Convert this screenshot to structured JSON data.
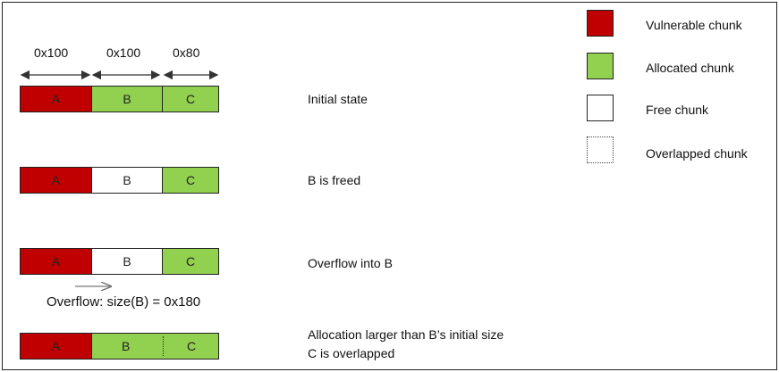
{
  "sizes": {
    "a": "0x100",
    "b": "0x100",
    "c": "0x80"
  },
  "rows": [
    {
      "chunks": [
        {
          "label": "A",
          "state": "vulnerable"
        },
        {
          "label": "B",
          "state": "allocated"
        },
        {
          "label": "C",
          "state": "allocated"
        }
      ],
      "caption": "Initial state"
    },
    {
      "chunks": [
        {
          "label": "A",
          "state": "vulnerable"
        },
        {
          "label": "B",
          "state": "free"
        },
        {
          "label": "C",
          "state": "allocated"
        }
      ],
      "caption": "B is freed"
    },
    {
      "chunks": [
        {
          "label": "A",
          "state": "vulnerable"
        },
        {
          "label": "B",
          "state": "free"
        },
        {
          "label": "C",
          "state": "allocated"
        }
      ],
      "caption": "Overflow into B",
      "note": "Overflow: size(B) = 0x180"
    },
    {
      "chunks": [
        {
          "label": "A",
          "state": "vulnerable"
        },
        {
          "label": "B",
          "state": "allocated"
        },
        {
          "label": "C",
          "state": "allocated"
        }
      ],
      "caption_line1": "Allocation larger than B’s initial size",
      "caption_line2": "C is overlapped"
    }
  ],
  "legend": {
    "vulnerable": "Vulnerable chunk",
    "allocated": "Allocated chunk",
    "free": "Free chunk",
    "overlapped": "Overlapped chunk"
  },
  "colors": {
    "vulnerable": "#c00000",
    "allocated": "#92d050",
    "free": "#ffffff"
  }
}
